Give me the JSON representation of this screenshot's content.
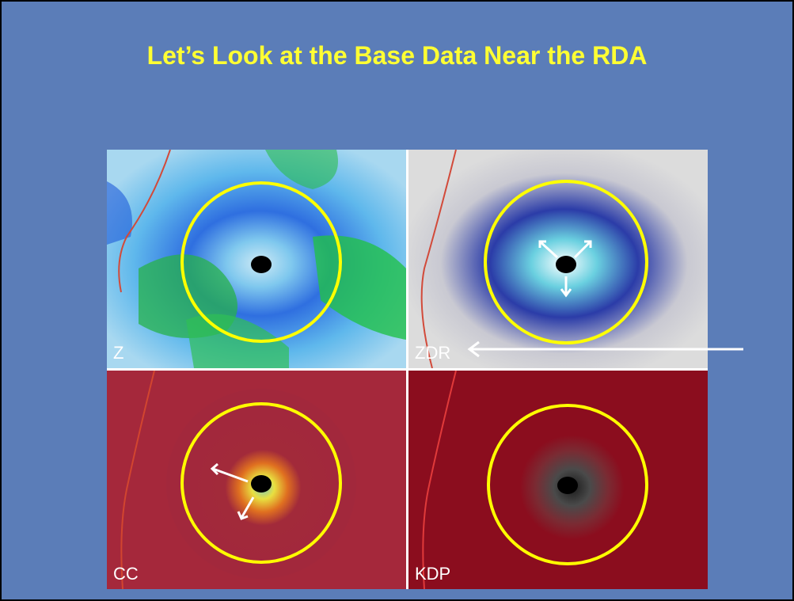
{
  "slide": {
    "title": "Let’s Look at the Base Data Near the RDA",
    "background": "#5b7db8",
    "title_color": "#ffff33",
    "ring_color": "#ffff00"
  },
  "panels": [
    {
      "label": "Z"
    },
    {
      "label": "ZDR"
    },
    {
      "label": "CC"
    },
    {
      "label": "KDP"
    }
  ]
}
